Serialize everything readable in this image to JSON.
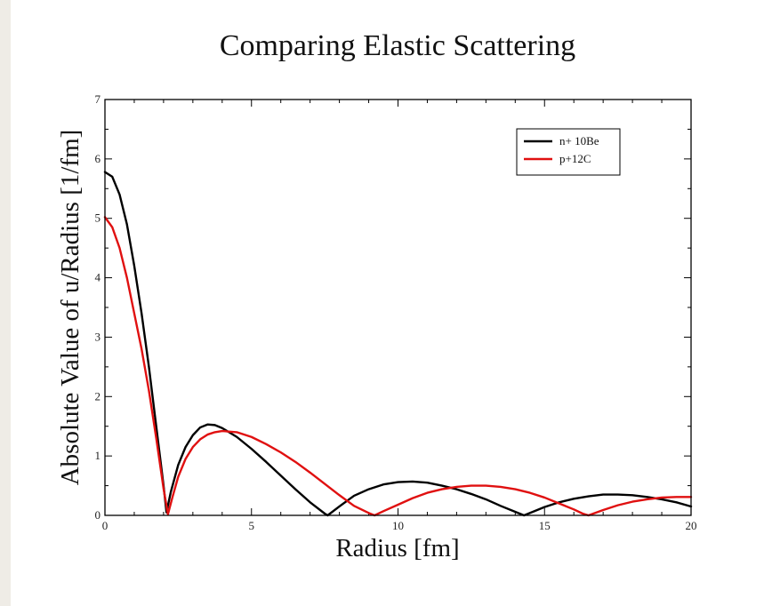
{
  "chart_data": {
    "type": "line",
    "title": "Comparing Elastic Scattering",
    "xlabel": "Radius [fm]",
    "ylabel": "Absolute Value of u/Radius [1/fm]",
    "xlim": [
      0,
      20
    ],
    "ylim": [
      0,
      7
    ],
    "xticks": [
      0,
      5,
      10,
      15,
      20
    ],
    "yticks": [
      0,
      1,
      2,
      3,
      4,
      5,
      6,
      7
    ],
    "grid": false,
    "legend_position": "top-right",
    "series": [
      {
        "name": "n+ 10Be",
        "color": "#000000",
        "points": [
          [
            0,
            5.78
          ],
          [
            0.25,
            5.7
          ],
          [
            0.5,
            5.4
          ],
          [
            0.75,
            4.9
          ],
          [
            1.0,
            4.2
          ],
          [
            1.25,
            3.4
          ],
          [
            1.5,
            2.5
          ],
          [
            1.75,
            1.5
          ],
          [
            2.0,
            0.5
          ],
          [
            2.1,
            0.05
          ],
          [
            2.25,
            0.4
          ],
          [
            2.5,
            0.85
          ],
          [
            2.75,
            1.15
          ],
          [
            3.0,
            1.35
          ],
          [
            3.25,
            1.48
          ],
          [
            3.5,
            1.53
          ],
          [
            3.75,
            1.52
          ],
          [
            4.0,
            1.47
          ],
          [
            4.5,
            1.32
          ],
          [
            5.0,
            1.12
          ],
          [
            5.5,
            0.9
          ],
          [
            6.0,
            0.67
          ],
          [
            6.5,
            0.44
          ],
          [
            7.0,
            0.22
          ],
          [
            7.5,
            0.03
          ],
          [
            7.6,
            0.0
          ],
          [
            8.0,
            0.15
          ],
          [
            8.5,
            0.33
          ],
          [
            9.0,
            0.44
          ],
          [
            9.5,
            0.52
          ],
          [
            10.0,
            0.56
          ],
          [
            10.5,
            0.57
          ],
          [
            11.0,
            0.55
          ],
          [
            11.5,
            0.5
          ],
          [
            12.0,
            0.44
          ],
          [
            12.5,
            0.36
          ],
          [
            13.0,
            0.27
          ],
          [
            13.5,
            0.16
          ],
          [
            14.0,
            0.06
          ],
          [
            14.3,
            0.0
          ],
          [
            14.6,
            0.06
          ],
          [
            15.0,
            0.14
          ],
          [
            15.5,
            0.22
          ],
          [
            16.0,
            0.28
          ],
          [
            16.5,
            0.32
          ],
          [
            17.0,
            0.35
          ],
          [
            17.5,
            0.35
          ],
          [
            18.0,
            0.34
          ],
          [
            18.5,
            0.31
          ],
          [
            19.0,
            0.27
          ],
          [
            19.5,
            0.22
          ],
          [
            20.0,
            0.15
          ]
        ]
      },
      {
        "name": "p+12C",
        "color": "#e01010",
        "points": [
          [
            0,
            5.02
          ],
          [
            0.25,
            4.85
          ],
          [
            0.5,
            4.5
          ],
          [
            0.75,
            4.0
          ],
          [
            1.0,
            3.4
          ],
          [
            1.25,
            2.8
          ],
          [
            1.5,
            2.1
          ],
          [
            1.75,
            1.3
          ],
          [
            2.0,
            0.45
          ],
          [
            2.15,
            0.02
          ],
          [
            2.3,
            0.3
          ],
          [
            2.5,
            0.65
          ],
          [
            2.75,
            0.95
          ],
          [
            3.0,
            1.15
          ],
          [
            3.25,
            1.28
          ],
          [
            3.5,
            1.36
          ],
          [
            3.75,
            1.4
          ],
          [
            4.0,
            1.42
          ],
          [
            4.5,
            1.4
          ],
          [
            5.0,
            1.32
          ],
          [
            5.5,
            1.2
          ],
          [
            6.0,
            1.06
          ],
          [
            6.5,
            0.9
          ],
          [
            7.0,
            0.72
          ],
          [
            7.5,
            0.53
          ],
          [
            8.0,
            0.34
          ],
          [
            8.5,
            0.16
          ],
          [
            9.0,
            0.04
          ],
          [
            9.2,
            0.0
          ],
          [
            9.5,
            0.07
          ],
          [
            10.0,
            0.18
          ],
          [
            10.5,
            0.29
          ],
          [
            11.0,
            0.38
          ],
          [
            11.5,
            0.44
          ],
          [
            12.0,
            0.48
          ],
          [
            12.5,
            0.5
          ],
          [
            13.0,
            0.5
          ],
          [
            13.5,
            0.48
          ],
          [
            14.0,
            0.44
          ],
          [
            14.5,
            0.38
          ],
          [
            15.0,
            0.3
          ],
          [
            15.5,
            0.2
          ],
          [
            16.0,
            0.1
          ],
          [
            16.3,
            0.03
          ],
          [
            16.5,
            0.0
          ],
          [
            17.0,
            0.09
          ],
          [
            17.5,
            0.17
          ],
          [
            18.0,
            0.23
          ],
          [
            18.5,
            0.27
          ],
          [
            19.0,
            0.3
          ],
          [
            19.5,
            0.31
          ],
          [
            20.0,
            0.31
          ]
        ]
      }
    ]
  }
}
